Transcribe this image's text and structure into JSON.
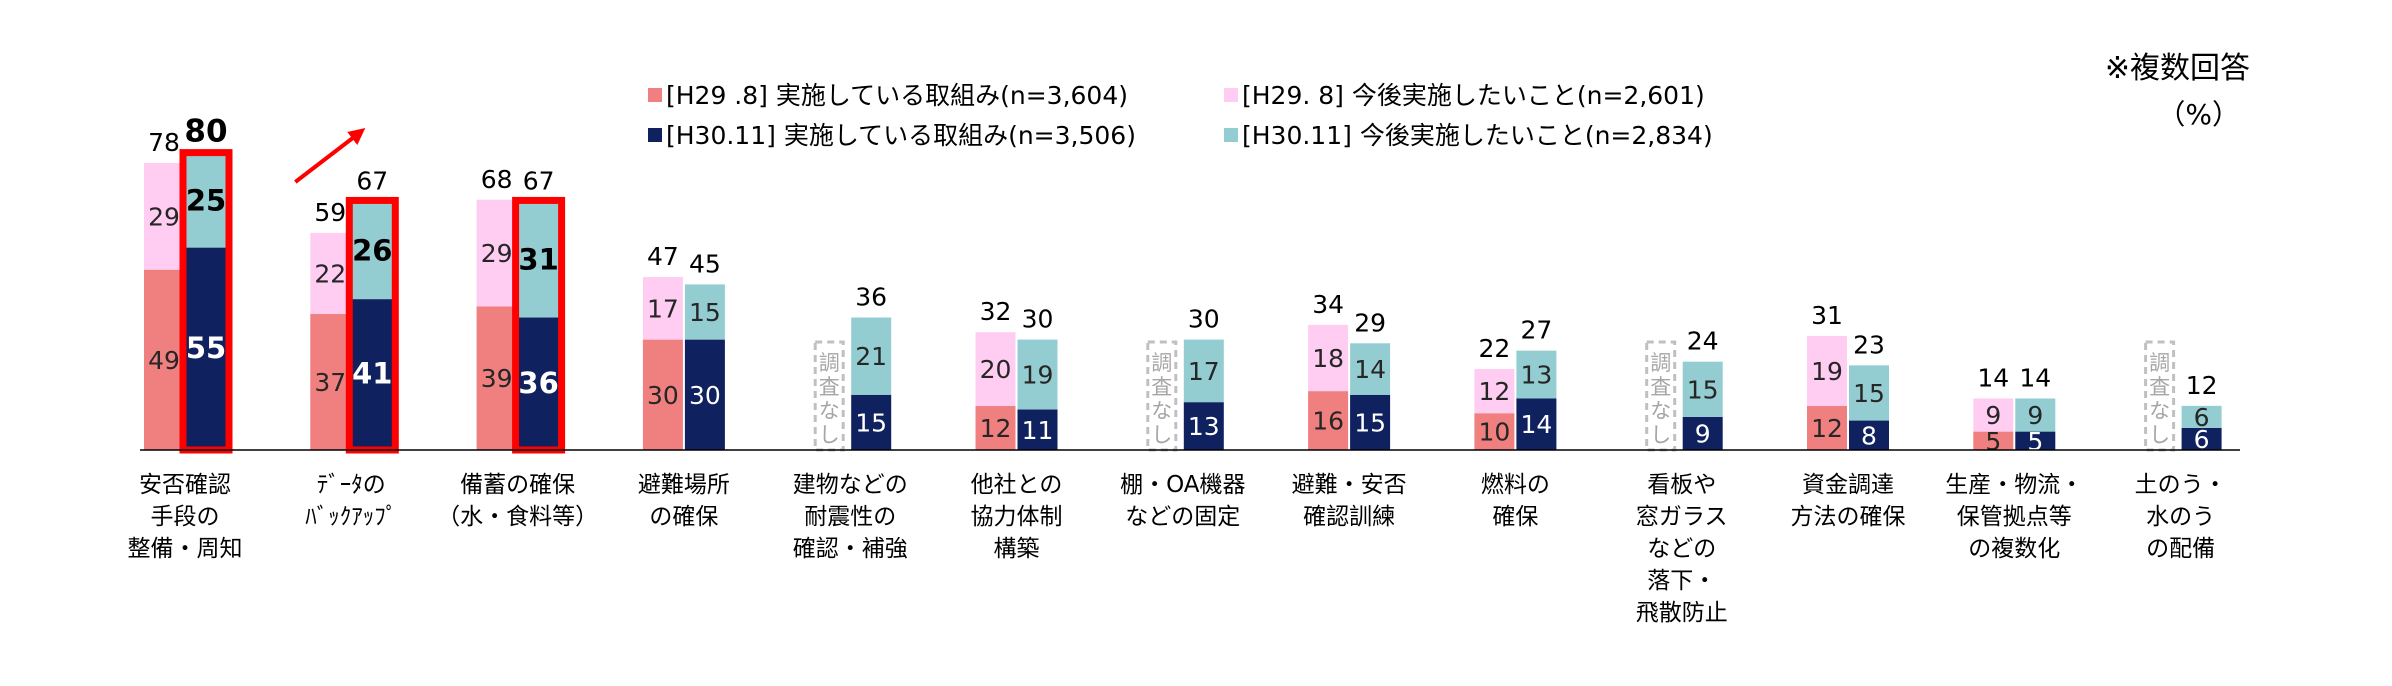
{
  "note": {
    "line1": "※複数回答",
    "line2": "（%）"
  },
  "colors": {
    "h29_impl": "#f08080",
    "h29_future": "#ffccf2",
    "h30_impl": "#0f215e",
    "h30_future": "#93cdd1",
    "highlight": "#ff0000",
    "na_border": "#c0c0c0",
    "na_text": "#a6a6a6"
  },
  "chart_data": {
    "type": "bar",
    "stacked": true,
    "unit": "%",
    "legend": [
      {
        "key": "h29_impl",
        "label": "[H29 .8] 実施している取組み(n=3,604)"
      },
      {
        "key": "h29_future",
        "label": "[H29. 8] 今後実施したいこと(n=2,601)"
      },
      {
        "key": "h30_impl",
        "label": "[H30.11] 実施している取組み(n=3,506)"
      },
      {
        "key": "h30_future",
        "label": "[H30.11] 今後実施したいこと(n=2,834)"
      }
    ],
    "na_label": "調査なし",
    "categories": [
      {
        "label": [
          "安否確認",
          "手段の",
          "整備・周知"
        ],
        "h29": {
          "impl": 49,
          "future": 29,
          "total": 78
        },
        "h30": {
          "impl": 55,
          "future": 25,
          "total": 80
        },
        "highlight": true
      },
      {
        "label": [
          "ﾃﾞｰﾀの",
          "ﾊﾞｯｸｱｯﾌﾟ"
        ],
        "h29": {
          "impl": 37,
          "future": 22,
          "total": 59
        },
        "h30": {
          "impl": 41,
          "future": 26,
          "total": 67
        },
        "highlight": true,
        "arrow": true
      },
      {
        "label": [
          "備蓄の確保",
          "（水・食料等）"
        ],
        "h29": {
          "impl": 39,
          "future": 29,
          "total": 68
        },
        "h30": {
          "impl": 36,
          "future": 31,
          "total": 67
        },
        "highlight": true
      },
      {
        "label": [
          "避難場所",
          "の確保"
        ],
        "h29": {
          "impl": 30,
          "future": 17,
          "total": 47
        },
        "h30": {
          "impl": 30,
          "future": 15,
          "total": 45
        }
      },
      {
        "label": [
          "建物などの",
          "耐震性の",
          "確認・補強"
        ],
        "h29": null,
        "h30": {
          "impl": 15,
          "future": 21,
          "total": 36
        }
      },
      {
        "label": [
          "他社との",
          "協力体制",
          "構築"
        ],
        "h29": {
          "impl": 12,
          "future": 20,
          "total": 32
        },
        "h30": {
          "impl": 11,
          "future": 19,
          "total": 30
        }
      },
      {
        "label": [
          "棚・OA機器",
          "などの固定"
        ],
        "h29": null,
        "h30": {
          "impl": 13,
          "future": 17,
          "total": 30
        }
      },
      {
        "label": [
          "避難・安否",
          "確認訓練"
        ],
        "h29": {
          "impl": 16,
          "future": 18,
          "total": 34
        },
        "h30": {
          "impl": 15,
          "future": 14,
          "total": 29
        }
      },
      {
        "label": [
          "燃料の",
          "確保"
        ],
        "h29": {
          "impl": 10,
          "future": 12,
          "total": 22
        },
        "h30": {
          "impl": 14,
          "future": 13,
          "total": 27
        }
      },
      {
        "label": [
          "看板や",
          "窓ガラス",
          "などの",
          "落下・",
          "飛散防止"
        ],
        "h29": null,
        "h30": {
          "impl": 9,
          "future": 15,
          "total": 24
        }
      },
      {
        "label": [
          "資金調達",
          "方法の確保"
        ],
        "h29": {
          "impl": 12,
          "future": 19,
          "total": 31
        },
        "h30": {
          "impl": 8,
          "future": 15,
          "total": 23
        }
      },
      {
        "label": [
          "生産・物流・",
          "保管拠点等",
          "の複数化"
        ],
        "h29": {
          "impl": 5,
          "future": 9,
          "total": 14
        },
        "h30": {
          "impl": 5,
          "future": 9,
          "total": 14
        }
      },
      {
        "label": [
          "土のう・",
          "水のう",
          "の配備"
        ],
        "h29": null,
        "h30": {
          "impl": 6,
          "future": 6,
          "total": 12
        }
      }
    ]
  }
}
